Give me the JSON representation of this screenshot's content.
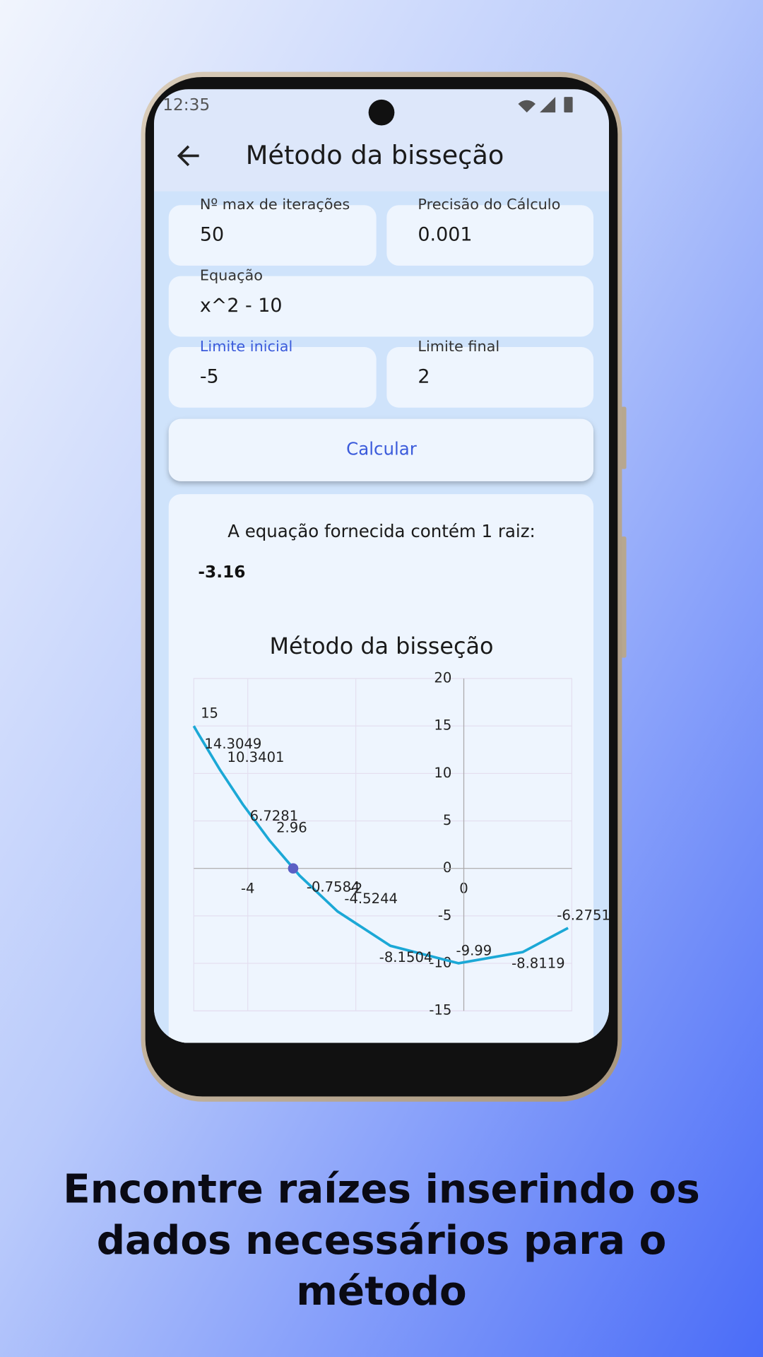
{
  "status_bar": {
    "time": "12:35"
  },
  "app_bar": {
    "title": "Método da bisseção"
  },
  "form": {
    "fields": [
      {
        "label": "Nº max de iterações",
        "value": "50"
      },
      {
        "label": "Precisão do Cálculo",
        "value": "0.001"
      },
      {
        "label": "Equação",
        "value": "x^2 - 10"
      },
      {
        "label": "Limite inicial",
        "value": "-5"
      },
      {
        "label": "Limite final",
        "value": "2"
      }
    ],
    "button": "Calcular"
  },
  "result": {
    "text": "A equação fornecida contém 1 raiz:",
    "root": -3.16
  },
  "chart_data": {
    "type": "line",
    "title": "Método da bisseção",
    "xlim": [
      -5,
      2
    ],
    "xticks": [
      -4,
      -2,
      0
    ],
    "ylim": [
      -15,
      20
    ],
    "yticks": [
      -15,
      -10,
      -5,
      0,
      5,
      10,
      15,
      20
    ],
    "grid": true,
    "series": [
      {
        "color": "#1ba8d6",
        "x": [
          -5,
          -4.93,
          -4.51,
          -4.09,
          -3.6,
          -3.04,
          -2.34,
          -1.36,
          -0.1,
          1.09,
          1.93
        ],
        "values": [
          15,
          14.3049,
          10.3401,
          6.7281,
          2.96,
          -0.7584,
          -4.5244,
          -8.1504,
          -9.99,
          -8.8119,
          -6.2751
        ]
      },
      {
        "color": "#5c5fc4",
        "x": [
          -3.16
        ],
        "values": [
          0
        ],
        "marker": true
      }
    ]
  },
  "caption": {
    "lines": [
      "Encontre raízes inserindo os",
      "dados necessários para o",
      "método"
    ]
  }
}
